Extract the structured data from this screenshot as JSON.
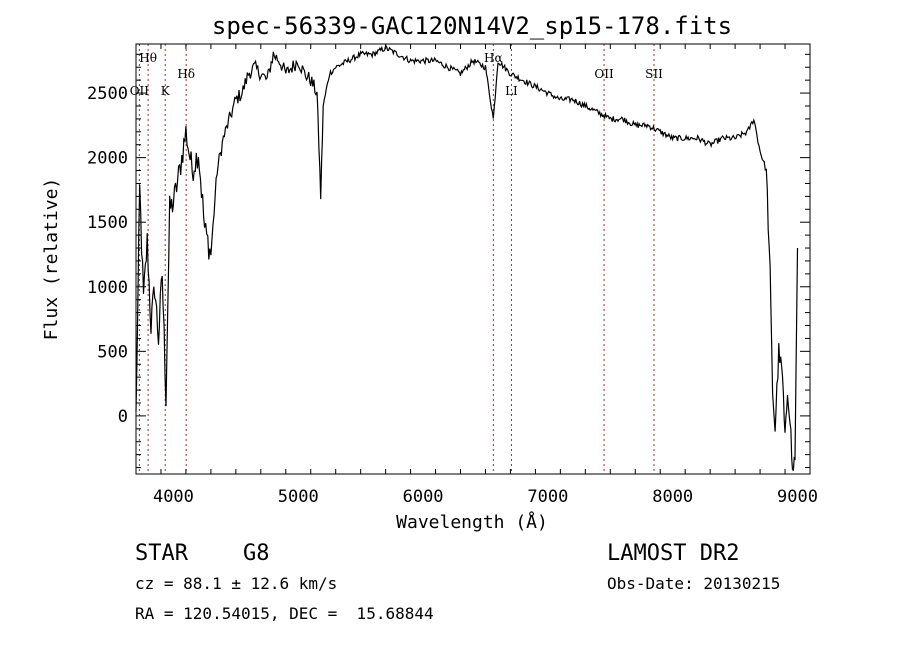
{
  "chart_data": {
    "type": "line",
    "title": "spec-56339-GAC120N14V2_sp15-178.fits",
    "xlabel": "Wavelength (Å)",
    "ylabel": "Flux (relative)",
    "xlim": [
      3700,
      9100
    ],
    "ylim": [
      -450,
      2880
    ],
    "xticks": [
      4000,
      5000,
      6000,
      7000,
      8000,
      9000
    ],
    "yticks": [
      0,
      500,
      1000,
      1500,
      2000,
      2500
    ],
    "spectral_lines": [
      {
        "label": "Hθ",
        "x": 3797,
        "placement": "top"
      },
      {
        "label": "OII",
        "x": 3727,
        "placement": "mid"
      },
      {
        "label": "K",
        "x": 3934,
        "placement": "mid"
      },
      {
        "label": "Hδ",
        "x": 4102,
        "placement": "upper"
      },
      {
        "label": "Hα",
        "x": 6563,
        "placement": "top"
      },
      {
        "label": "LI",
        "x": 6708,
        "placement": "mid"
      },
      {
        "label": "OII",
        "x": 7450,
        "placement": "upper"
      },
      {
        "label": "SII",
        "x": 7850,
        "placement": "upper"
      }
    ],
    "series": [
      {
        "x": [
          3700,
          3730,
          3760,
          3790,
          3820,
          3850,
          3880,
          3910,
          3940,
          3970,
          4000,
          4050,
          4100,
          4150,
          4200,
          4250,
          4300,
          4350,
          4400,
          4450,
          4500,
          4550,
          4600,
          4650,
          4700,
          4750,
          4800,
          4850,
          4900,
          4950,
          5000,
          5050,
          5100,
          5150,
          5180,
          5200,
          5250,
          5300,
          5400,
          5500,
          5600,
          5700,
          5800,
          5900,
          6000,
          6100,
          6200,
          6300,
          6400,
          6500,
          6563,
          6600,
          6700,
          6800,
          6900,
          7000,
          7100,
          7200,
          7300,
          7400,
          7500,
          7600,
          7700,
          7800,
          7900,
          8000,
          8100,
          8200,
          8300,
          8400,
          8500,
          8600,
          8650,
          8700,
          8750,
          8780,
          8800,
          8820,
          8850,
          8880,
          8900,
          8920,
          8940,
          8960,
          8980,
          9000
        ],
        "y": [
          0,
          1750,
          900,
          1350,
          700,
          1000,
          600,
          1100,
          150,
          1600,
          1650,
          1900,
          2200,
          1900,
          2050,
          1450,
          1250,
          1900,
          2150,
          2300,
          2450,
          2500,
          2650,
          2700,
          2650,
          2600,
          2800,
          2750,
          2650,
          2700,
          2750,
          2650,
          2600,
          2500,
          1700,
          2400,
          2650,
          2700,
          2750,
          2800,
          2800,
          2850,
          2800,
          2750,
          2750,
          2750,
          2700,
          2650,
          2750,
          2700,
          2300,
          2750,
          2650,
          2600,
          2550,
          2500,
          2450,
          2450,
          2400,
          2350,
          2300,
          2300,
          2250,
          2250,
          2200,
          2150,
          2150,
          2150,
          2100,
          2150,
          2150,
          2200,
          2300,
          2050,
          1900,
          1100,
          200,
          -100,
          500,
          300,
          -200,
          200,
          0,
          -450,
          -300,
          1300
        ]
      }
    ]
  },
  "info": {
    "object_class": "STAR",
    "subclass": "G8",
    "survey": "LAMOST DR2",
    "redshift": "cz = 88.1 ± 12.6 km/s",
    "obs_date": "Obs-Date: 20130215",
    "coords": "RA = 120.54015, DEC =  15.68844"
  }
}
